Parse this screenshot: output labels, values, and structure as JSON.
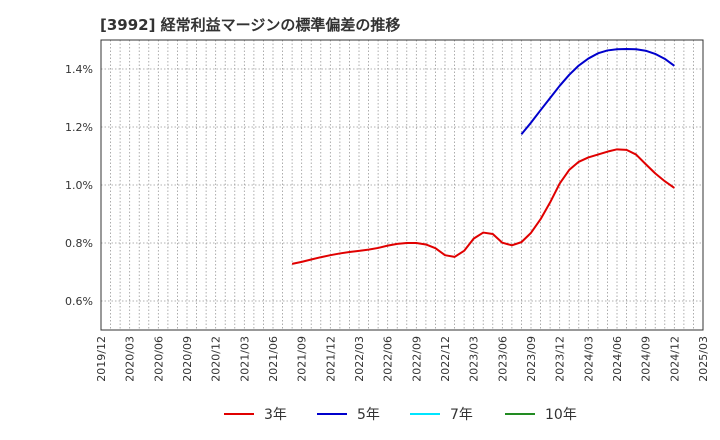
{
  "chart_data": {
    "type": "line",
    "title": "[3992]  経常利益マージンの標準偏差の推移",
    "xlabel": "",
    "ylabel": "",
    "ylim": [
      0.5,
      1.5
    ],
    "yticks": [
      0.6,
      0.8,
      1.0,
      1.2,
      1.4
    ],
    "ytick_labels": [
      "0.6%",
      "0.8%",
      "1.0%",
      "1.2%",
      "1.4%"
    ],
    "x_categories": [
      "2019/12",
      "2020/03",
      "2020/06",
      "2020/09",
      "2020/12",
      "2021/03",
      "2021/06",
      "2021/09",
      "2021/12",
      "2022/03",
      "2022/06",
      "2022/09",
      "2022/12",
      "2023/03",
      "2023/06",
      "2023/09",
      "2023/12",
      "2024/03",
      "2024/06",
      "2024/09",
      "2024/12",
      "2025/03"
    ],
    "grid": true,
    "legend_position": "bottom",
    "series": [
      {
        "name": "3年",
        "color": "#e00000",
        "points": [
          [
            "2021/08",
            0.728
          ],
          [
            "2021/09",
            0.735
          ],
          [
            "2021/10",
            0.743
          ],
          [
            "2021/11",
            0.751
          ],
          [
            "2021/12",
            0.758
          ],
          [
            "2022/01",
            0.764
          ],
          [
            "2022/02",
            0.769
          ],
          [
            "2022/03",
            0.773
          ],
          [
            "2022/04",
            0.777
          ],
          [
            "2022/05",
            0.783
          ],
          [
            "2022/06",
            0.791
          ],
          [
            "2022/07",
            0.797
          ],
          [
            "2022/08",
            0.8
          ],
          [
            "2022/09",
            0.8
          ],
          [
            "2022/10",
            0.795
          ],
          [
            "2022/11",
            0.782
          ],
          [
            "2022/12",
            0.758
          ],
          [
            "2023/01",
            0.752
          ],
          [
            "2023/02",
            0.773
          ],
          [
            "2023/03",
            0.815
          ],
          [
            "2023/04",
            0.836
          ],
          [
            "2023/05",
            0.831
          ],
          [
            "2023/06",
            0.801
          ],
          [
            "2023/07",
            0.792
          ],
          [
            "2023/08",
            0.803
          ],
          [
            "2023/09",
            0.835
          ],
          [
            "2023/10",
            0.882
          ],
          [
            "2023/11",
            0.94
          ],
          [
            "2023/12",
            1.005
          ],
          [
            "2024/01",
            1.052
          ],
          [
            "2024/02",
            1.08
          ],
          [
            "2024/03",
            1.095
          ],
          [
            "2024/04",
            1.105
          ],
          [
            "2024/05",
            1.115
          ],
          [
            "2024/06",
            1.123
          ],
          [
            "2024/07",
            1.121
          ],
          [
            "2024/08",
            1.105
          ],
          [
            "2024/09",
            1.072
          ],
          [
            "2024/10",
            1.04
          ],
          [
            "2024/11",
            1.013
          ],
          [
            "2024/12",
            0.99
          ]
        ]
      },
      {
        "name": "5年",
        "color": "#0000cc",
        "points": [
          [
            "2023/08",
            1.175
          ],
          [
            "2023/09",
            1.215
          ],
          [
            "2023/10",
            1.258
          ],
          [
            "2023/11",
            1.3
          ],
          [
            "2023/12",
            1.342
          ],
          [
            "2024/01",
            1.38
          ],
          [
            "2024/02",
            1.412
          ],
          [
            "2024/03",
            1.436
          ],
          [
            "2024/04",
            1.454
          ],
          [
            "2024/05",
            1.464
          ],
          [
            "2024/06",
            1.468
          ],
          [
            "2024/07",
            1.469
          ],
          [
            "2024/08",
            1.468
          ],
          [
            "2024/09",
            1.463
          ],
          [
            "2024/10",
            1.452
          ],
          [
            "2024/11",
            1.435
          ],
          [
            "2024/12",
            1.411
          ]
        ]
      },
      {
        "name": "7年",
        "color": "#00e5ff",
        "points": []
      },
      {
        "name": "10年",
        "color": "#228b22",
        "points": []
      }
    ]
  }
}
